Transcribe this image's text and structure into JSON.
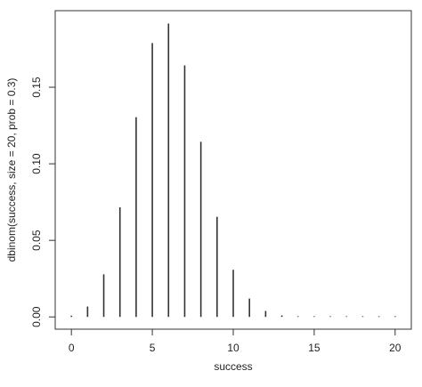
{
  "chart_data": {
    "type": "bar",
    "title": "",
    "xlabel": "success",
    "ylabel": "dbinom(success, size = 20, prob = 0.3)",
    "x": [
      0,
      1,
      2,
      3,
      4,
      5,
      6,
      7,
      8,
      9,
      10,
      11,
      12,
      13,
      14,
      15,
      16,
      17,
      18,
      19,
      20
    ],
    "values": [
      0.0008,
      0.0068,
      0.0278,
      0.0716,
      0.1304,
      0.1789,
      0.1916,
      0.1643,
      0.1144,
      0.0654,
      0.0308,
      0.012,
      0.0039,
      0.001,
      0.0002,
      0.0,
      0.0,
      0.0,
      0.0,
      0.0,
      0.0
    ],
    "xlim": [
      -1,
      21
    ],
    "ylim": [
      -0.008,
      0.2
    ],
    "x_ticks": [
      0,
      5,
      10,
      15,
      20
    ],
    "x_tick_labels": [
      "0",
      "5",
      "10",
      "15",
      "20"
    ],
    "y_ticks": [
      0,
      0.05,
      0.1,
      0.15
    ],
    "y_tick_labels": [
      "0.00",
      "0.05",
      "0.10",
      "0.15"
    ],
    "grid": false,
    "legend": "none",
    "line_color": "#333333"
  }
}
